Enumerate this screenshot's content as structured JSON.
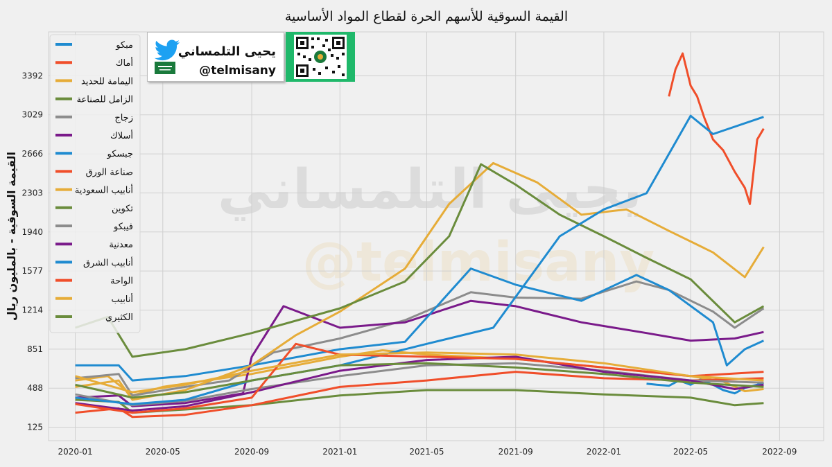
{
  "chart_data": {
    "type": "line",
    "title": "القيمة السوقية للأسهم الحرة لقطاع المواد الأساسية",
    "ylabel": "القيمة السوقية - بالمليون ريال",
    "xlabel": "",
    "ylim": [
      0,
      3800
    ],
    "yticks": [
      125,
      488,
      851,
      1214,
      1577,
      1940,
      2303,
      2666,
      3029,
      3392
    ],
    "xticks": [
      "2020-01",
      "2020-05",
      "2020-09",
      "2021-01",
      "2021-05",
      "2021-09",
      "2022-01",
      "2022-05",
      "2022-09"
    ],
    "grid": true,
    "legend_position": "upper-left",
    "series": [
      {
        "name": "مبكو",
        "color": "#1f8bd0",
        "x": [
          "2022-03-01",
          "2022-03-15",
          "2022-04-01",
          "2022-04-15",
          "2022-05-01",
          "2022-05-15",
          "2022-06-01",
          "2022-06-15",
          "2022-07-01",
          "2022-07-15",
          "2022-08-01",
          "2022-08-10"
        ],
        "values": [
          530,
          520,
          510,
          560,
          520,
          570,
          520,
          470,
          440,
          490,
          520,
          540
        ]
      },
      {
        "name": "أماك",
        "color": "#f04e2a",
        "x": [
          "2022-04-01",
          "2022-04-10",
          "2022-04-20",
          "2022-05-01",
          "2022-05-10",
          "2022-05-20",
          "2022-06-01",
          "2022-06-15",
          "2022-07-01",
          "2022-07-15",
          "2022-07-22",
          "2022-08-01",
          "2022-08-10"
        ],
        "values": [
          3200,
          3450,
          3600,
          3300,
          3200,
          3000,
          2800,
          2700,
          2500,
          2350,
          2200,
          2800,
          2900
        ]
      },
      {
        "name": "اليمامة للحديد",
        "color": "#e6ac38",
        "x": [
          "2020-01-01",
          "2020-02-15",
          "2020-03-20",
          "2020-05-01",
          "2020-07-01",
          "2020-09-01",
          "2020-11-01",
          "2021-01-01",
          "2021-03-01",
          "2021-05-01",
          "2021-07-01",
          "2021-09-01",
          "2021-11-01",
          "2022-01-01",
          "2022-03-01",
          "2022-05-01",
          "2022-06-15",
          "2022-07-15",
          "2022-08-10"
        ],
        "values": [
          560,
          600,
          420,
          500,
          560,
          620,
          700,
          780,
          840,
          800,
          780,
          760,
          720,
          680,
          640,
          600,
          550,
          460,
          480
        ]
      },
      {
        "name": "الزامل للصناعة",
        "color": "#6a8c3c",
        "x": [
          "2020-01-01",
          "2020-03-01",
          "2020-03-20",
          "2020-06-01",
          "2020-09-01",
          "2021-01-01",
          "2021-05-01",
          "2021-09-01",
          "2022-01-01",
          "2022-05-01",
          "2022-07-01",
          "2022-08-10"
        ],
        "values": [
          380,
          360,
          260,
          290,
          330,
          420,
          470,
          470,
          430,
          400,
          330,
          350
        ]
      },
      {
        "name": "زجاج",
        "color": "#8c8c8c",
        "x": [
          "2020-01-01",
          "2020-03-01",
          "2020-03-20",
          "2020-06-01",
          "2020-08-01",
          "2020-10-01",
          "2021-01-01",
          "2021-04-01",
          "2021-07-01",
          "2021-09-01",
          "2021-12-01",
          "2022-02-15",
          "2022-04-01",
          "2022-06-01",
          "2022-07-01",
          "2022-08-10"
        ],
        "values": [
          580,
          620,
          420,
          500,
          560,
          820,
          950,
          1120,
          1380,
          1330,
          1320,
          1480,
          1400,
          1200,
          1050,
          1230
        ]
      },
      {
        "name": "أسلاك",
        "color": "#7a1a8a",
        "x": [
          "2020-01-01",
          "2020-03-01",
          "2020-03-20",
          "2020-06-01",
          "2020-08-20",
          "2020-09-01",
          "2020-10-15",
          "2021-01-01",
          "2021-04-01",
          "2021-07-01",
          "2021-09-01",
          "2021-12-01",
          "2022-03-01",
          "2022-05-01",
          "2022-07-01",
          "2022-08-10"
        ],
        "values": [
          400,
          420,
          320,
          350,
          440,
          780,
          1250,
          1050,
          1100,
          1300,
          1250,
          1100,
          1000,
          930,
          950,
          1010
        ]
      },
      {
        "name": "جبسكو",
        "color": "#1f8bd0",
        "x": [
          "2020-01-01",
          "2020-03-01",
          "2020-03-20",
          "2020-06-01",
          "2020-09-01",
          "2021-01-01",
          "2021-04-01",
          "2021-07-01",
          "2021-09-01",
          "2021-12-01",
          "2022-02-15",
          "2022-04-01",
          "2022-06-01",
          "2022-06-20",
          "2022-07-15",
          "2022-08-10"
        ],
        "values": [
          700,
          700,
          560,
          600,
          700,
          850,
          920,
          1600,
          1450,
          1300,
          1540,
          1400,
          1100,
          700,
          850,
          930
        ]
      },
      {
        "name": "صناعة الورق",
        "color": "#f04e2a",
        "x": [
          "2020-01-01",
          "2020-03-01",
          "2020-03-20",
          "2020-06-01",
          "2020-09-01",
          "2021-01-01",
          "2021-05-01",
          "2021-09-01",
          "2022-01-01",
          "2022-05-01",
          "2022-08-10"
        ],
        "values": [
          260,
          300,
          220,
          240,
          330,
          500,
          560,
          640,
          580,
          560,
          580
        ]
      },
      {
        "name": "أنابيب السعودية",
        "color": "#e6ac38",
        "x": [
          "2020-01-01",
          "2020-03-01",
          "2020-03-20",
          "2020-06-01",
          "2020-09-01",
          "2020-11-01",
          "2021-01-01",
          "2021-04-01",
          "2021-06-01",
          "2021-08-01",
          "2021-10-01",
          "2021-12-01",
          "2022-02-01",
          "2022-04-01",
          "2022-06-01",
          "2022-07-15",
          "2022-08-10"
        ],
        "values": [
          500,
          560,
          380,
          470,
          700,
          980,
          1200,
          1600,
          2200,
          2580,
          2400,
          2100,
          2150,
          1950,
          1750,
          1520,
          1800
        ]
      },
      {
        "name": "تكوين",
        "color": "#6a8c3c",
        "x": [
          "2020-01-01",
          "2020-02-15",
          "2020-03-20",
          "2020-06-01",
          "2020-09-01",
          "2021-01-01",
          "2021-04-01",
          "2021-06-01",
          "2021-07-15",
          "2021-09-01",
          "2021-11-01",
          "2022-01-01",
          "2022-03-01",
          "2022-05-01",
          "2022-07-01",
          "2022-08-10"
        ],
        "values": [
          1050,
          1150,
          780,
          850,
          1000,
          1230,
          1480,
          1900,
          2570,
          2380,
          2100,
          1900,
          1700,
          1500,
          1100,
          1250
        ]
      },
      {
        "name": "فيبكو",
        "color": "#8c8c8c",
        "x": [
          "2020-01-01",
          "2020-03-20",
          "2020-06-01",
          "2020-09-01",
          "2021-01-01",
          "2021-05-01",
          "2021-09-01",
          "2022-01-01",
          "2022-05-01",
          "2022-08-10"
        ],
        "values": [
          430,
          330,
          370,
          480,
          600,
          700,
          720,
          650,
          560,
          540
        ]
      },
      {
        "name": "معدنية",
        "color": "#7a1a8a",
        "x": [
          "2020-01-01",
          "2020-03-20",
          "2020-06-01",
          "2020-09-01",
          "2021-01-01",
          "2021-05-01",
          "2021-09-01",
          "2022-01-01",
          "2022-05-01",
          "2022-07-01",
          "2022-08-10"
        ],
        "values": [
          350,
          280,
          320,
          450,
          650,
          750,
          780,
          640,
          560,
          480,
          520
        ]
      },
      {
        "name": "أنابيب الشرق",
        "color": "#1f8bd0",
        "x": [
          "2020-01-01",
          "2020-03-20",
          "2020-06-01",
          "2020-09-01",
          "2021-01-01",
          "2021-05-01",
          "2021-08-01",
          "2021-11-01",
          "2022-01-01",
          "2022-03-01",
          "2022-05-01",
          "2022-06-01",
          "2022-08-10"
        ],
        "values": [
          400,
          340,
          380,
          560,
          700,
          900,
          1050,
          1900,
          2150,
          2300,
          3020,
          2850,
          3010
        ]
      },
      {
        "name": "الواحة",
        "color": "#f04e2a",
        "x": [
          "2020-01-01",
          "2020-03-20",
          "2020-06-01",
          "2020-09-01",
          "2020-11-01",
          "2021-01-01",
          "2021-05-01",
          "2021-09-01",
          "2022-01-01",
          "2022-05-01",
          "2022-08-10"
        ],
        "values": [
          340,
          260,
          300,
          400,
          900,
          800,
          780,
          760,
          680,
          600,
          640
        ]
      },
      {
        "name": "أنابيب",
        "color": "#e6ac38",
        "x": [
          "2020-01-01",
          "2020-03-20",
          "2020-06-01",
          "2020-09-01",
          "2021-01-01",
          "2021-05-01",
          "2021-09-01",
          "2022-01-01",
          "2022-05-01",
          "2022-08-10"
        ],
        "values": [
          600,
          450,
          520,
          650,
          800,
          820,
          800,
          720,
          600,
          560
        ]
      },
      {
        "name": "الكثيري",
        "color": "#6a8c3c",
        "x": [
          "2020-01-01",
          "2020-03-20",
          "2020-06-01",
          "2020-09-01",
          "2021-01-01",
          "2021-05-01",
          "2021-09-01",
          "2022-01-01",
          "2022-05-01",
          "2022-08-10"
        ],
        "values": [
          520,
          400,
          450,
          560,
          700,
          720,
          680,
          620,
          540,
          500
        ]
      }
    ]
  },
  "badge_twitter": {
    "name": "يحيى التلمساني",
    "handle": "@telmisany",
    "icon": "twitter-bird-icon",
    "flag": "saudi-flag-icon"
  },
  "badge_qr": {
    "icon": "qr-code-icon"
  },
  "watermark": {
    "name": "يحيى التلمساني",
    "handle": "@telmisany"
  },
  "colors": {
    "background": "#f0f0f0",
    "grid": "#cfcfcf",
    "qr_panel": "#1fb86a",
    "twitter": "#1da1f2"
  }
}
